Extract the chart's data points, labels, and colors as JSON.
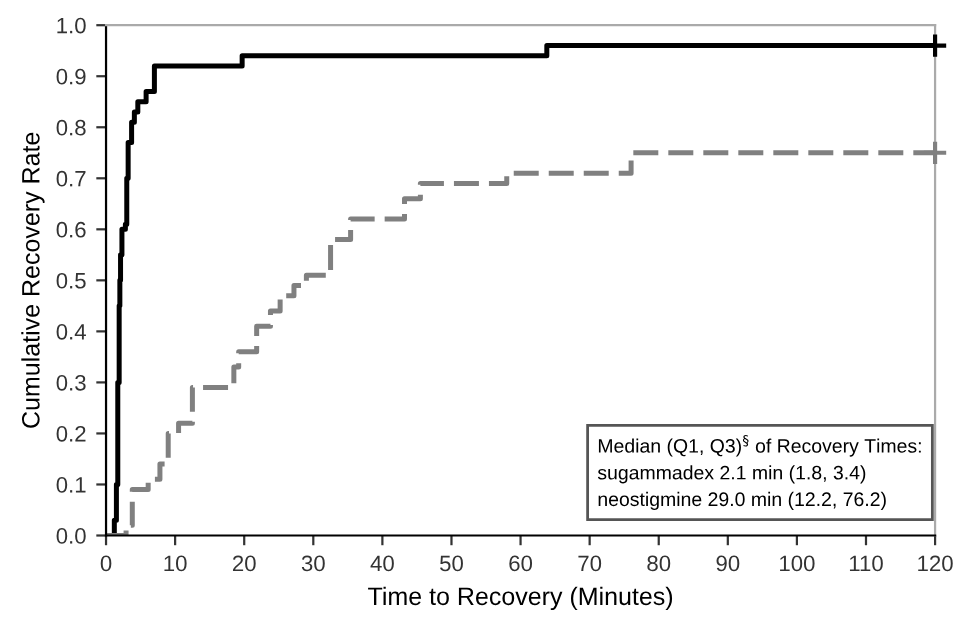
{
  "chart_data": {
    "type": "step",
    "xlabel": "Time to Recovery (Minutes)",
    "ylabel": "Cumulative Recovery Rate",
    "xlim": [
      0,
      120
    ],
    "ylim": [
      0,
      1.0
    ],
    "xticks": [
      0,
      10,
      20,
      30,
      40,
      50,
      60,
      70,
      80,
      90,
      100,
      110,
      120
    ],
    "yticks": [
      {
        "value": 0,
        "label": "0.0"
      },
      {
        "value": 0.1,
        "label": "0.1"
      },
      {
        "value": 0.2,
        "label": "0.2"
      },
      {
        "value": 0.3,
        "label": "0.3"
      },
      {
        "value": 0.4,
        "label": "0.4"
      },
      {
        "value": 0.5,
        "label": "0.5"
      },
      {
        "value": 0.6,
        "label": "0.6"
      },
      {
        "value": 0.7,
        "label": "0.7"
      },
      {
        "value": 0.8,
        "label": "0.8"
      },
      {
        "value": 0.9,
        "label": "0.9"
      },
      {
        "value": 1.0,
        "label": "1.0"
      }
    ],
    "grid": false,
    "legend": false,
    "series": [
      {
        "color": "#000000",
        "line_style": "solid",
        "x": [
          0,
          1.2,
          1.5,
          1.7,
          1.9,
          2.0,
          2.1,
          2.3,
          2.8,
          3.0,
          3.2,
          3.7,
          4.1,
          4.6,
          5.8,
          7.0,
          19.7,
          63.8,
          120
        ],
        "values": [
          0,
          0.03,
          0.1,
          0.3,
          0.45,
          0.5,
          0.55,
          0.6,
          0.61,
          0.7,
          0.77,
          0.81,
          0.83,
          0.85,
          0.87,
          0.92,
          0.94,
          0.96,
          0.96
        ]
      },
      {
        "color": "#808080",
        "line_style": "dashed",
        "x": [
          0,
          2.9,
          3.8,
          6.1,
          7.8,
          9.0,
          10.5,
          12.5,
          18.0,
          18.5,
          19.2,
          21.8,
          23.8,
          25.2,
          27.2,
          29.0,
          32.5,
          35.4,
          43.2,
          45.5,
          58.0,
          76.0,
          120
        ],
        "values": [
          0,
          0.02,
          0.09,
          0.11,
          0.14,
          0.2,
          0.22,
          0.29,
          0.29,
          0.33,
          0.36,
          0.41,
          0.44,
          0.47,
          0.49,
          0.51,
          0.58,
          0.62,
          0.66,
          0.69,
          0.71,
          0.75,
          0.75
        ]
      },
      {
        "type": "scatter",
        "marker": "cross",
        "color": "#000000",
        "x": [
          120
        ],
        "values": [
          0.96
        ]
      },
      {
        "type": "scatter",
        "marker": "cross",
        "color": "#808080",
        "x": [
          120
        ],
        "values": [
          0.75
        ]
      }
    ],
    "annotations": [
      "Median (Q1, Q3)$^{§}$ of Recovery Times:\nsugammadex 2.1 min (1.8, 3.4)\nneostigmine 29.0 min (12.2, 76.2)"
    ]
  }
}
